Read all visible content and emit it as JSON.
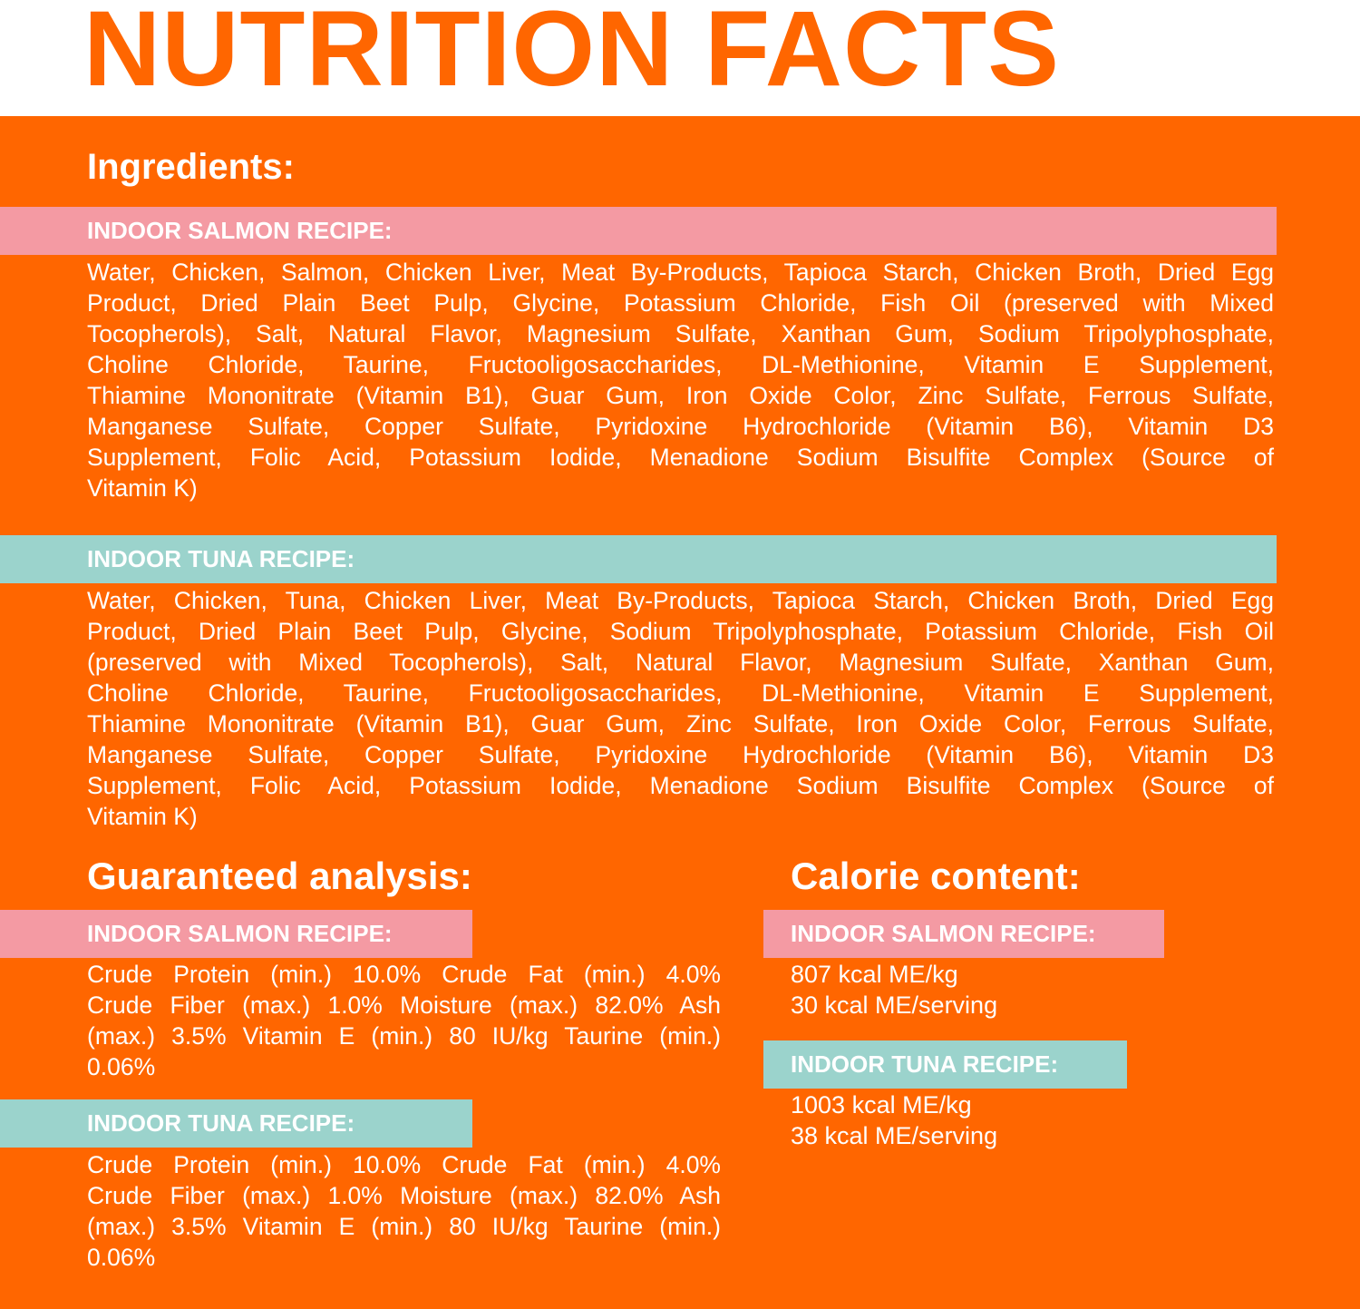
{
  "title": "NUTRITION FACTS",
  "colors": {
    "orange": "#ff6600",
    "salmon_bar": "#f49aa3",
    "tuna_bar": "#9bd3cc"
  },
  "ingredients": {
    "heading": "Ingredients:",
    "salmon": {
      "label": "INDOOR SALMON RECIPE:",
      "lines": [
        "Water, Chicken, Salmon, Chicken Liver, Meat By-Products, Tapioca Starch, Chicken Broth, Dried Egg",
        "Product, Dried Plain Beet Pulp, Glycine, Potassium Chloride, Fish Oil (preserved with Mixed",
        "Tocopherols), Salt, Natural Flavor, Magnesium Sulfate, Xanthan Gum, Sodium Tripolyphosphate,",
        "Choline Chloride, Taurine, Fructooligosaccharides, DL-Methionine, Vitamin E Supplement,",
        "Thiamine Mononitrate (Vitamin B1), Guar Gum, Iron Oxide Color, Zinc Sulfate, Ferrous Sulfate,",
        "Manganese Sulfate, Copper Sulfate, Pyridoxine Hydrochloride (Vitamin B6), Vitamin D3",
        "Supplement, Folic Acid, Potassium Iodide, Menadione Sodium Bisulfite Complex (Source of",
        "Vitamin K)"
      ]
    },
    "tuna": {
      "label": "INDOOR TUNA RECIPE:",
      "lines": [
        "Water, Chicken, Tuna, Chicken Liver, Meat By-Products, Tapioca Starch, Chicken Broth, Dried Egg",
        "Product, Dried Plain Beet Pulp, Glycine, Sodium Tripolyphosphate, Potassium Chloride, Fish Oil",
        "(preserved with Mixed Tocopherols), Salt, Natural Flavor, Magnesium Sulfate, Xanthan Gum,",
        "Choline Chloride, Taurine, Fructooligosaccharides, DL-Methionine, Vitamin E Supplement,",
        "Thiamine Mononitrate (Vitamin B1), Guar Gum, Zinc Sulfate, Iron Oxide Color, Ferrous Sulfate,",
        "Manganese Sulfate, Copper Sulfate, Pyridoxine Hydrochloride (Vitamin B6), Vitamin D3",
        "Supplement, Folic Acid, Potassium Iodide, Menadione Sodium Bisulfite Complex (Source of",
        "Vitamin K)"
      ]
    }
  },
  "analysis": {
    "heading": "Guaranteed analysis:",
    "salmon": {
      "label": "INDOOR SALMON RECIPE:",
      "lines": [
        "Crude Protein (min.) 10.0% Crude Fat (min.) 4.0%",
        "Crude Fiber (max.) 1.0% Moisture (max.) 82.0% Ash",
        "(max.) 3.5% Vitamin E (min.) 80 IU/kg Taurine (min.)",
        "0.06%"
      ]
    },
    "tuna": {
      "label": "INDOOR TUNA RECIPE:",
      "lines": [
        "Crude Protein (min.) 10.0% Crude Fat (min.) 4.0%",
        "Crude Fiber (max.) 1.0% Moisture (max.) 82.0% Ash",
        "(max.) 3.5% Vitamin E (min.) 80 IU/kg Taurine (min.)",
        "0.06%"
      ]
    }
  },
  "calories": {
    "heading": "Calorie content:",
    "salmon": {
      "label": "INDOOR SALMON RECIPE:",
      "per_kg": "807 kcal ME/kg",
      "per_serving": "30 kcal ME/serving"
    },
    "tuna": {
      "label": "INDOOR TUNA RECIPE:",
      "per_kg": "1003 kcal ME/kg",
      "per_serving": "38 kcal ME/serving"
    }
  }
}
